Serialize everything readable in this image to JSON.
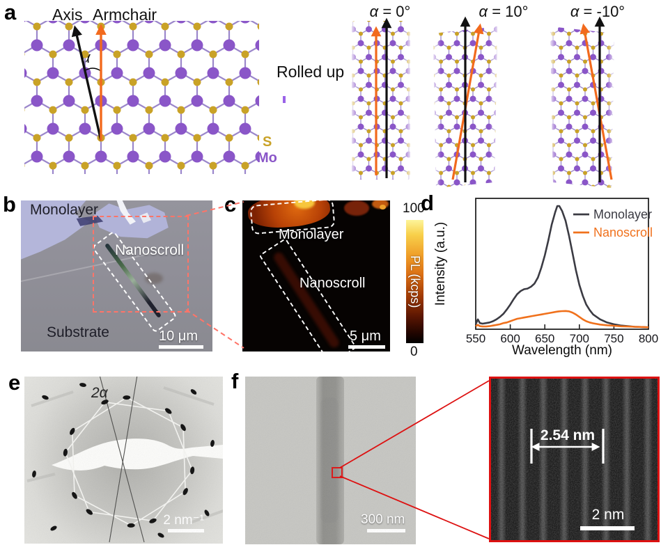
{
  "figure": {
    "panel_labels": {
      "a": "a",
      "b": "b",
      "c": "c",
      "d": "d",
      "e": "e",
      "f": "f"
    }
  },
  "colors": {
    "mo_purple": "#8a56c8",
    "s_yellow": "#c9a227",
    "armchair_orange": "#f26a1d",
    "axis_black": "#111111",
    "rolled_up_purple": "#9a63e8",
    "accent_red": "#dd1111",
    "dashed_red": "#ff7468",
    "lavender_flake": "#b4b6da"
  },
  "panel_a": {
    "axis_arrow_label": "Axis",
    "armchair_arrow_label": "Armchair",
    "angle_symbol": "α",
    "rolled_up_label": "Rolled up",
    "atom_legend": {
      "sulfur": "S",
      "molybdenum": "Mo"
    },
    "scroll_labels": [
      "α = 0°",
      "α = 10°",
      "α = -10°"
    ]
  },
  "panel_b": {
    "label_monolayer": "Monolayer",
    "label_nanoscroll": "Nanoscroll",
    "label_substrate": "Substrate",
    "scale_bar": "10 μm"
  },
  "panel_c": {
    "label_monolayer": "Monolayer",
    "label_nanoscroll": "Nanoscroll",
    "scale_bar": "5 μm",
    "colorbar": {
      "max": "100",
      "min": "0",
      "title": "PL (kcps)"
    }
  },
  "panel_e": {
    "angle_label": "2α",
    "scale_bar": "2 nm⁻¹"
  },
  "panel_f": {
    "scale_bar": "300 nm",
    "inset": {
      "fringe_spacing": "2.54 nm",
      "scale_bar": "2 nm"
    }
  },
  "chart_data": {
    "type": "line",
    "xlabel": "Wavelength (nm)",
    "ylabel": "Intensity (a.u.)",
    "xlim": [
      550,
      800
    ],
    "xticks": [
      550,
      600,
      650,
      700,
      750,
      800
    ],
    "ylim": [
      0,
      1.05
    ],
    "legend_position": "top-right",
    "x": [
      550,
      553,
      556,
      560,
      565,
      570,
      575,
      580,
      585,
      590,
      595,
      600,
      605,
      610,
      615,
      620,
      625,
      630,
      635,
      640,
      645,
      650,
      655,
      660,
      665,
      668,
      671,
      675,
      680,
      685,
      690,
      695,
      700,
      705,
      710,
      715,
      720,
      730,
      740,
      750,
      760,
      770,
      780,
      790,
      800
    ],
    "series": [
      {
        "name": "Monolayer",
        "color": "#3b3b43",
        "values": [
          0.04,
          0.08,
          0.05,
          0.045,
          0.05,
          0.055,
          0.065,
          0.08,
          0.1,
          0.125,
          0.16,
          0.2,
          0.245,
          0.285,
          0.31,
          0.325,
          0.33,
          0.345,
          0.37,
          0.42,
          0.5,
          0.6,
          0.72,
          0.85,
          0.95,
          1.0,
          1.0,
          0.96,
          0.88,
          0.76,
          0.62,
          0.48,
          0.36,
          0.27,
          0.2,
          0.155,
          0.12,
          0.08,
          0.055,
          0.04,
          0.03,
          0.025,
          0.02,
          0.018,
          0.015
        ]
      },
      {
        "name": "Nanoscroll",
        "color": "#f0711c",
        "values": [
          0.025,
          0.035,
          0.025,
          0.022,
          0.022,
          0.025,
          0.03,
          0.035,
          0.04,
          0.05,
          0.055,
          0.065,
          0.075,
          0.085,
          0.09,
          0.095,
          0.1,
          0.105,
          0.11,
          0.115,
          0.12,
          0.125,
          0.13,
          0.135,
          0.14,
          0.143,
          0.145,
          0.147,
          0.148,
          0.145,
          0.135,
          0.12,
          0.1,
          0.08,
          0.065,
          0.055,
          0.048,
          0.038,
          0.032,
          0.028,
          0.024,
          0.022,
          0.02,
          0.018,
          0.016
        ]
      }
    ]
  }
}
